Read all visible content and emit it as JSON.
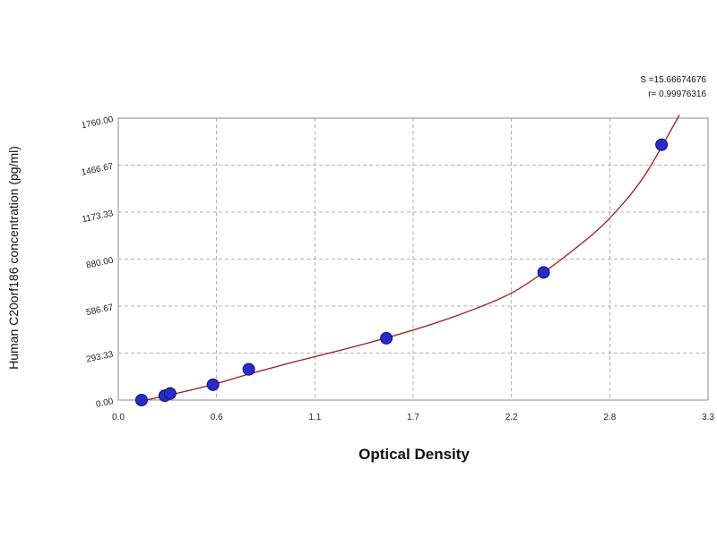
{
  "chart_data": {
    "type": "scatter",
    "xlabel": "Optical Density",
    "ylabel": "Human C20orf186 concentration (pg/ml)",
    "xlim": [
      0,
      3.3
    ],
    "ylim": [
      0,
      1760
    ],
    "x_ticks": [
      "0.0",
      "0.6",
      "1.1",
      "1.7",
      "2.2",
      "2.8",
      "3.3"
    ],
    "y_ticks": [
      "0.00",
      "293.33",
      "586.67",
      "880.00",
      "1173.33",
      "1466.67",
      "1760.00"
    ],
    "grid": true,
    "stats": {
      "s": "S =15.66674676",
      "r": "r= 0.99976316"
    },
    "points": [
      {
        "x": 0.13,
        "y": 0
      },
      {
        "x": 0.26,
        "y": 27.5
      },
      {
        "x": 0.29,
        "y": 41
      },
      {
        "x": 0.53,
        "y": 96
      },
      {
        "x": 0.73,
        "y": 192
      },
      {
        "x": 1.5,
        "y": 386
      },
      {
        "x": 2.38,
        "y": 797
      },
      {
        "x": 3.04,
        "y": 1594
      }
    ],
    "curve": [
      {
        "x": 0.13,
        "y": -5
      },
      {
        "x": 0.3,
        "y": 35
      },
      {
        "x": 0.53,
        "y": 97
      },
      {
        "x": 0.75,
        "y": 168
      },
      {
        "x": 1.0,
        "y": 243
      },
      {
        "x": 1.25,
        "y": 313
      },
      {
        "x": 1.5,
        "y": 388
      },
      {
        "x": 1.75,
        "y": 472
      },
      {
        "x": 2.0,
        "y": 571
      },
      {
        "x": 2.2,
        "y": 668
      },
      {
        "x": 2.38,
        "y": 797
      },
      {
        "x": 2.55,
        "y": 940
      },
      {
        "x": 2.7,
        "y": 1080
      },
      {
        "x": 2.85,
        "y": 1260
      },
      {
        "x": 2.95,
        "y": 1410
      },
      {
        "x": 3.04,
        "y": 1580
      },
      {
        "x": 3.1,
        "y": 1700
      },
      {
        "x": 3.14,
        "y": 1780
      }
    ],
    "colors": {
      "point_fill": "#2a2acc",
      "point_stroke": "#101070",
      "curve": "#a01818",
      "grid": "#999999",
      "frame": "#888888"
    }
  }
}
